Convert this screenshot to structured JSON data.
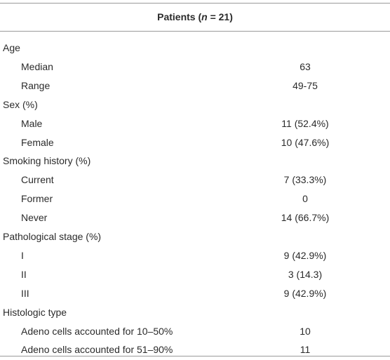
{
  "header": {
    "prefix": "Patients (",
    "italic": "n",
    "suffix": " = 21)"
  },
  "rows": [
    {
      "label": "Age"
    },
    {
      "label": "Median",
      "value": "63"
    },
    {
      "label": "Range",
      "value": "49-75"
    },
    {
      "label": "Sex (%)"
    },
    {
      "label": "Male",
      "value": "11 (52.4%)"
    },
    {
      "label": "Female",
      "value": "10 (47.6%)"
    },
    {
      "label": "Smoking history (%)"
    },
    {
      "label": "Current",
      "value": "7 (33.3%)"
    },
    {
      "label": "Former",
      "value": "0"
    },
    {
      "label": "Never",
      "value": "14 (66.7%)"
    },
    {
      "label": "Pathological stage (%)"
    },
    {
      "label": "I",
      "value": "9 (42.9%)"
    },
    {
      "label": "II",
      "value": "3 (14.3)"
    },
    {
      "label": "III",
      "value": "9 (42.9%)"
    },
    {
      "label": "Histologic type"
    },
    {
      "label": "Adeno cells accounted for 10–50%",
      "value": "10"
    },
    {
      "label": "Adeno cells accounted for 51–90%",
      "value": "11"
    }
  ]
}
